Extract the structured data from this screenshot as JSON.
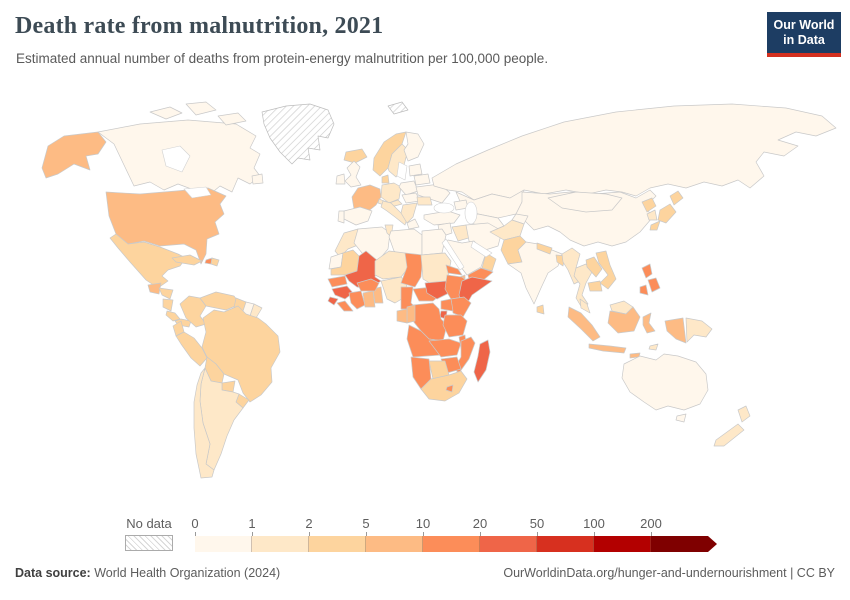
{
  "header": {
    "title": "Death rate from malnutrition, 2021",
    "subtitle": "Estimated annual number of deaths from protein-energy malnutrition per 100,000 people.",
    "logo": {
      "line1": "Our World",
      "line2": "in Data",
      "bg_color": "#1d3d63",
      "accent_color": "#d4301f"
    }
  },
  "legend": {
    "no_data_label": "No data",
    "tick_labels": [
      "0",
      "1",
      "2",
      "5",
      "10",
      "20",
      "50",
      "100",
      "200"
    ],
    "colors": [
      "#fff7ec",
      "#fee8c8",
      "#fdd49e",
      "#fdbb84",
      "#fc8d59",
      "#ef6548",
      "#d7301f",
      "#b30000",
      "#7f0000"
    ]
  },
  "footer": {
    "source_label": "Data source:",
    "source_value": "World Health Organization (2024)",
    "credit": "OurWorldinData.org/hunger-and-undernourishment | CC BY"
  },
  "map": {
    "ocean_color": "#ffffff",
    "border_color": "#c9c9c9",
    "no_data_regions": [
      "Greenland",
      "Svalbard"
    ],
    "countries": {
      "usa": "#fdbb84",
      "canada": "#fff7ec",
      "mexico": "#fdd49e",
      "guatemala": "#fdbb84",
      "honduras": "#fdd49e",
      "nicaragua": "#fdd49e",
      "costarica": "#fdd49e",
      "panama": "#fdd49e",
      "cuba": "#fdd49e",
      "haiti": "#fc8d59",
      "domrep": "#fdd49e",
      "iceland": "#fdd49e",
      "colombia": "#fdd49e",
      "venezuela": "#fdd49e",
      "guyana": "#fdd49e",
      "suriname": "#fff7ec",
      "frguiana": "#fee8c8",
      "ecuador": "#fdd49e",
      "peru": "#fdd49e",
      "brazil": "#fdd49e",
      "bolivia": "#fdd49e",
      "paraguay": "#fdd49e",
      "uruguay": "#fdd49e",
      "argentina": "#fee8c8",
      "chile": "#fee8c8",
      "uk": "#fff7ec",
      "ireland": "#fff7ec",
      "norway": "#fdd49e",
      "sweden": "#fee8c8",
      "finland": "#fff7ec",
      "baltics": "#fff7ec",
      "denmark": "#fdd49e",
      "germany": "#fee8c8",
      "poland": "#fff7ec",
      "belarus": "#fff7ec",
      "ukraine": "#fff7ec",
      "france": "#fdbb84",
      "spain": "#fff7ec",
      "portugal": "#fff7ec",
      "italy": "#fee8c8",
      "alps": "#fee8c8",
      "czechia": "#fff7ec",
      "balkans": "#fee8c8",
      "greece": "#fff7ec",
      "romania": "#fee8c8",
      "turkey": "#fff7ec",
      "russia": "#fff7ec",
      "kazakhstan": "#fff7ec",
      "centralasia": "#fff7ec",
      "kyrgyzstan": "#fff7ec",
      "caucasus": "#fff7ec",
      "levant": "#fff7ec",
      "iraq": "#fee8c8",
      "iran": "#fff7ec",
      "saudiarabia": "#fff7ec",
      "yemen": "#fc8d59",
      "oman": "#fdd49e",
      "afghanistan": "#fee8c8",
      "pakistan": "#fdd49e",
      "india": "#fff7ec",
      "nepal": "#fdd49e",
      "bangladesh": "#fdd49e",
      "srilanka": "#fdd49e",
      "china": "#fff7ec",
      "mongolia": "#fff7ec",
      "northkorea": "#fdd49e",
      "southkorea": "#fee8c8",
      "japan": "#fdd49e",
      "myanmar": "#fee8c8",
      "thailand": "#fee8c8",
      "laos": "#fdd49e",
      "vietnam": "#fdd49e",
      "cambodia": "#fdd49e",
      "malaysia": "#fee8c8",
      "indonesia": "#fdbb84",
      "png": "#fee8c8",
      "philippines": "#fc8d59",
      "timor": "#fee8c8",
      "australia": "#fff7ec",
      "newzealand": "#fee8c8",
      "morocco": "#fee8c8",
      "wsahara": "#fff7ec",
      "algeria": "#fff7ec",
      "tunisia": "#fee8c8",
      "libya": "#fff7ec",
      "egypt": "#fff7ec",
      "mauritania": "#fdd49e",
      "mali": "#ef6548",
      "senegal": "#fc8d59",
      "guinea": "#ef6548",
      "sierraleone": "#ef6548",
      "liberia": "#fc8d59",
      "ivorycoast": "#fc8d59",
      "ghana": "#fdbb84",
      "togobenin": "#fdbb84",
      "burkinafaso": "#fc8d59",
      "niger": "#fee8c8",
      "nigeria": "#fee8c8",
      "chad": "#fc8d59",
      "cameroon": "#fc8d59",
      "car": "#fc8d59",
      "sudan": "#fee8c8",
      "southsudan": "#ef6548",
      "eritrea": "#fc8d59",
      "djibouti": "#fdbb84",
      "ethiopia": "#fc8d59",
      "somalia": "#ef6548",
      "kenya": "#fc8d59",
      "uganda": "#fc8d59",
      "rwandaburundi": "#ef6548",
      "drc": "#fc8d59",
      "congo": "#fdbb84",
      "gabon": "#fdbb84",
      "tanzania": "#fc8d59",
      "angola": "#fc8d59",
      "zambia": "#fc8d59",
      "malawi": "#fc8d59",
      "mozambique": "#fc8d59",
      "zimbabwe": "#fc8d59",
      "botswana": "#fdd49e",
      "namibia": "#fc8d59",
      "southafrica": "#fdd49e",
      "lesotho": "#fc8d59",
      "madagascar": "#ef6548"
    }
  },
  "chart_data": {
    "type": "choropleth",
    "title": "Death rate from malnutrition, 2021",
    "subtitle": "Estimated annual number of deaths from protein-energy malnutrition per 100,000 people.",
    "unit": "deaths from protein-energy malnutrition per 100,000 people",
    "year": 2021,
    "legend_position": "bottom",
    "legend_bins": [
      {
        "range": "0-1",
        "color": "#fff7ec"
      },
      {
        "range": "1-2",
        "color": "#fee8c8"
      },
      {
        "range": "2-5",
        "color": "#fdd49e"
      },
      {
        "range": "5-10",
        "color": "#fdbb84"
      },
      {
        "range": "10-20",
        "color": "#fc8d59"
      },
      {
        "range": "20-50",
        "color": "#ef6548"
      },
      {
        "range": "50-100",
        "color": "#d7301f"
      },
      {
        "range": "100-200",
        "color": "#b30000"
      },
      {
        "range": "200+",
        "color": "#7f0000"
      }
    ],
    "no_data": [
      "Greenland",
      "Svalbard"
    ],
    "country_values": {
      "United States": "5-10",
      "Canada": "0-1",
      "Mexico": "2-5",
      "Guatemala": "5-10",
      "Honduras": "2-5",
      "Nicaragua": "2-5",
      "Costa Rica": "2-5",
      "Panama": "2-5",
      "Cuba": "2-5",
      "Haiti": "10-20",
      "Dominican Republic": "2-5",
      "Colombia": "2-5",
      "Venezuela": "2-5",
      "Guyana": "2-5",
      "Suriname": "0-1",
      "Ecuador": "2-5",
      "Peru": "2-5",
      "Brazil": "2-5",
      "Bolivia": "2-5",
      "Paraguay": "2-5",
      "Uruguay": "2-5",
      "Argentina": "1-2",
      "Chile": "1-2",
      "United Kingdom": "0-1",
      "Ireland": "0-1",
      "Iceland": "2-5",
      "Norway": "2-5",
      "Sweden": "1-2",
      "Finland": "0-1",
      "Denmark": "2-5",
      "Germany": "1-2",
      "France": "5-10",
      "Spain": "0-1",
      "Portugal": "0-1",
      "Italy": "1-2",
      "Poland": "0-1",
      "Ukraine": "0-1",
      "Romania": "1-2",
      "Turkey": "0-1",
      "Russia": "0-1",
      "Kazakhstan": "0-1",
      "Iraq": "1-2",
      "Iran": "0-1",
      "Saudi Arabia": "0-1",
      "Yemen": "10-20",
      "Oman": "2-5",
      "Afghanistan": "1-2",
      "Pakistan": "2-5",
      "India": "0-1",
      "Nepal": "2-5",
      "Bangladesh": "2-5",
      "Sri Lanka": "2-5",
      "China": "0-1",
      "Mongolia": "0-1",
      "North Korea": "2-5",
      "South Korea": "1-2",
      "Japan": "2-5",
      "Myanmar": "1-2",
      "Thailand": "1-2",
      "Laos": "2-5",
      "Vietnam": "2-5",
      "Cambodia": "2-5",
      "Malaysia": "1-2",
      "Indonesia": "5-10",
      "Papua New Guinea": "1-2",
      "Philippines": "10-20",
      "Australia": "0-1",
      "New Zealand": "1-2",
      "Morocco": "1-2",
      "Algeria": "0-1",
      "Tunisia": "1-2",
      "Libya": "0-1",
      "Egypt": "0-1",
      "Mauritania": "2-5",
      "Mali": "20-50",
      "Senegal": "10-20",
      "Guinea": "20-50",
      "Sierra Leone": "20-50",
      "Liberia": "10-20",
      "Cote d'Ivoire": "10-20",
      "Ghana": "5-10",
      "Togo": "5-10",
      "Benin": "5-10",
      "Burkina Faso": "10-20",
      "Niger": "1-2",
      "Nigeria": "1-2",
      "Chad": "10-20",
      "Cameroon": "10-20",
      "Central African Republic": "10-20",
      "Sudan": "1-2",
      "South Sudan": "20-50",
      "Eritrea": "10-20",
      "Djibouti": "5-10",
      "Ethiopia": "10-20",
      "Somalia": "20-50",
      "Kenya": "10-20",
      "Uganda": "10-20",
      "Rwanda": "20-50",
      "Burundi": "20-50",
      "Democratic Republic of Congo": "10-20",
      "Congo": "5-10",
      "Gabon": "5-10",
      "Tanzania": "10-20",
      "Angola": "10-20",
      "Zambia": "10-20",
      "Malawi": "10-20",
      "Mozambique": "10-20",
      "Zimbabwe": "10-20",
      "Botswana": "2-5",
      "Namibia": "10-20",
      "South Africa": "2-5",
      "Lesotho": "10-20",
      "Madagascar": "20-50"
    }
  }
}
